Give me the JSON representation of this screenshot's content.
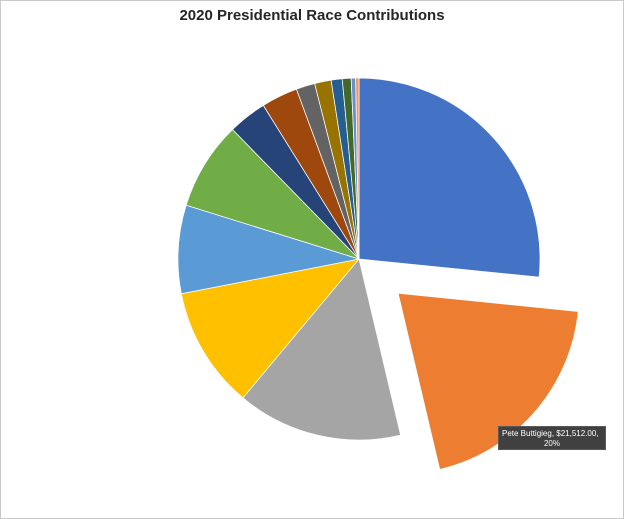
{
  "chart_data": {
    "type": "pie",
    "title": "2020 Presidential Race Contributions",
    "exploded_slice_label": "Pete Buttigieg",
    "slices": [
      {
        "name": "",
        "value": 27,
        "color": "#4472c4"
      },
      {
        "name": "Pete Buttigieg",
        "value": 20,
        "color": "#ed7d31",
        "exploded": true
      },
      {
        "name": "",
        "value": 15,
        "color": "#a5a5a5"
      },
      {
        "name": "",
        "value": 11,
        "color": "#ffc000"
      },
      {
        "name": "",
        "value": 8,
        "color": "#5b9bd5"
      },
      {
        "name": "",
        "value": 8,
        "color": "#70ad47"
      },
      {
        "name": "",
        "value": 3.5,
        "color": "#264478"
      },
      {
        "name": "",
        "value": 3.3,
        "color": "#9e480e"
      },
      {
        "name": "",
        "value": 1.7,
        "color": "#636363"
      },
      {
        "name": "",
        "value": 1.5,
        "color": "#997300"
      },
      {
        "name": "",
        "value": 1.0,
        "color": "#255e91"
      },
      {
        "name": "",
        "value": 0.8,
        "color": "#43682b"
      },
      {
        "name": "",
        "value": 0.4,
        "color": "#698ed0"
      },
      {
        "name": "",
        "value": 0.3,
        "color": "#f1975a"
      }
    ]
  },
  "tooltip": {
    "line1": "Pete Buttigieg, $21,512.00,",
    "line2": "20%"
  }
}
